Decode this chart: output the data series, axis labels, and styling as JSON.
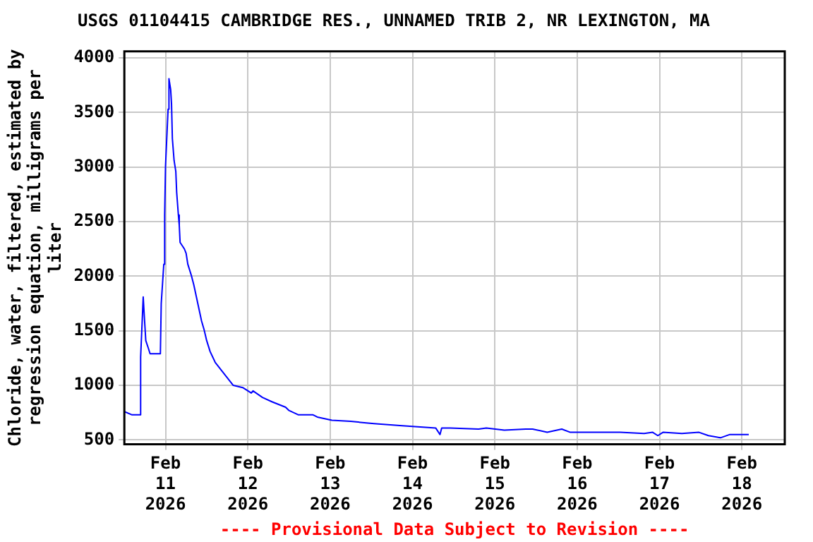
{
  "chart_data": {
    "type": "line",
    "title": "USGS 01104415 CAMBRIDGE RES., UNNAMED TRIB 2, NR LEXINGTON, MA",
    "ylabel": "Chloride, water, filtered, estimated by regression equation, milligrams per liter",
    "annotations": [
      "---- Provisional Data Subject to Revision ----"
    ],
    "x": [
      "2026-02-10T12:00",
      "2026-02-10T14:15",
      "2026-02-10T16:30",
      "2026-02-10T16:45",
      "2026-02-10T17:30",
      "2026-02-10T17:45",
      "2026-02-10T18:15",
      "2026-02-10T19:00",
      "2026-02-10T19:30",
      "2026-02-10T22:30",
      "2026-02-10T22:45",
      "2026-02-10T23:30",
      "2026-02-10T23:45",
      "2026-02-11T00:00",
      "2026-02-11T00:45",
      "2026-02-11T01:00",
      "2026-02-11T01:30",
      "2026-02-11T01:45",
      "2026-02-11T02:00",
      "2026-02-11T02:30",
      "2026-02-11T03:00",
      "2026-02-11T03:15",
      "2026-02-11T03:45",
      "2026-02-11T04:00",
      "2026-02-11T04:15",
      "2026-02-11T05:30",
      "2026-02-11T06:00",
      "2026-02-11T06:30",
      "2026-02-11T07:30",
      "2026-02-11T08:15",
      "2026-02-11T09:00",
      "2026-02-11T09:45",
      "2026-02-11T10:30",
      "2026-02-11T11:15",
      "2026-02-11T12:00",
      "2026-02-11T13:00",
      "2026-02-11T14:30",
      "2026-02-11T17:00",
      "2026-02-11T19:45",
      "2026-02-11T22:30",
      "2026-02-12T01:00",
      "2026-02-12T01:30",
      "2026-02-12T04:15",
      "2026-02-12T07:00",
      "2026-02-12T11:00",
      "2026-02-12T12:00",
      "2026-02-12T14:45",
      "2026-02-12T19:00",
      "2026-02-12T20:15",
      "2026-02-13T00:30",
      "2026-02-13T06:00",
      "2026-02-13T12:45",
      "2026-02-13T21:00",
      "2026-02-14T06:45",
      "2026-02-14T08:00",
      "2026-02-14T08:30",
      "2026-02-14T11:00",
      "2026-02-14T19:15",
      "2026-02-14T21:30",
      "2026-02-15T02:45",
      "2026-02-15T09:00",
      "2026-02-15T11:00",
      "2026-02-15T15:15",
      "2026-02-15T19:30",
      "2026-02-15T22:00",
      "2026-02-16T12:30",
      "2026-02-16T19:30",
      "2026-02-16T22:00",
      "2026-02-16T23:30",
      "2026-02-17T01:00",
      "2026-02-17T06:30",
      "2026-02-17T11:30",
      "2026-02-17T14:15",
      "2026-02-17T17:45",
      "2026-02-17T20:30",
      "2026-02-18T02:00"
    ],
    "series": [
      {
        "color": "#0000ff",
        "values": [
          760,
          730,
          730,
          1260,
          1810,
          1670,
          1410,
          1340,
          1290,
          1290,
          1750,
          2110,
          2560,
          3010,
          3530,
          3810,
          3710,
          3580,
          3260,
          3060,
          2960,
          2770,
          2560,
          2470,
          2310,
          2250,
          2210,
          2110,
          2010,
          1920,
          1810,
          1700,
          1590,
          1510,
          1410,
          1310,
          1210,
          1110,
          1000,
          980,
          930,
          950,
          890,
          850,
          800,
          770,
          730,
          730,
          710,
          680,
          670,
          650,
          630,
          610,
          550,
          610,
          610,
          600,
          610,
          590,
          600,
          600,
          570,
          600,
          570,
          570,
          560,
          570,
          540,
          570,
          560,
          570,
          540,
          520,
          550,
          550
        ]
      }
    ],
    "xlim": [
      "2026-02-10T12:00",
      "2026-02-18T12:30"
    ],
    "xticks": [
      {
        "value": "2026-02-11",
        "label": "Feb 11 2026"
      },
      {
        "value": "2026-02-12",
        "label": "Feb 12 2026"
      },
      {
        "value": "2026-02-13",
        "label": "Feb 13 2026"
      },
      {
        "value": "2026-02-14",
        "label": "Feb 14 2026"
      },
      {
        "value": "2026-02-15",
        "label": "Feb 15 2026"
      },
      {
        "value": "2026-02-16",
        "label": "Feb 16 2026"
      },
      {
        "value": "2026-02-17",
        "label": "Feb 17 2026"
      },
      {
        "value": "2026-02-18",
        "label": "Feb 18 2026"
      }
    ],
    "ylim": [
      460,
      4060
    ],
    "yticks": [
      500,
      1000,
      1500,
      2000,
      2500,
      3000,
      3500,
      4000
    ],
    "grid": true,
    "marker": "none",
    "line_style": "solid"
  }
}
